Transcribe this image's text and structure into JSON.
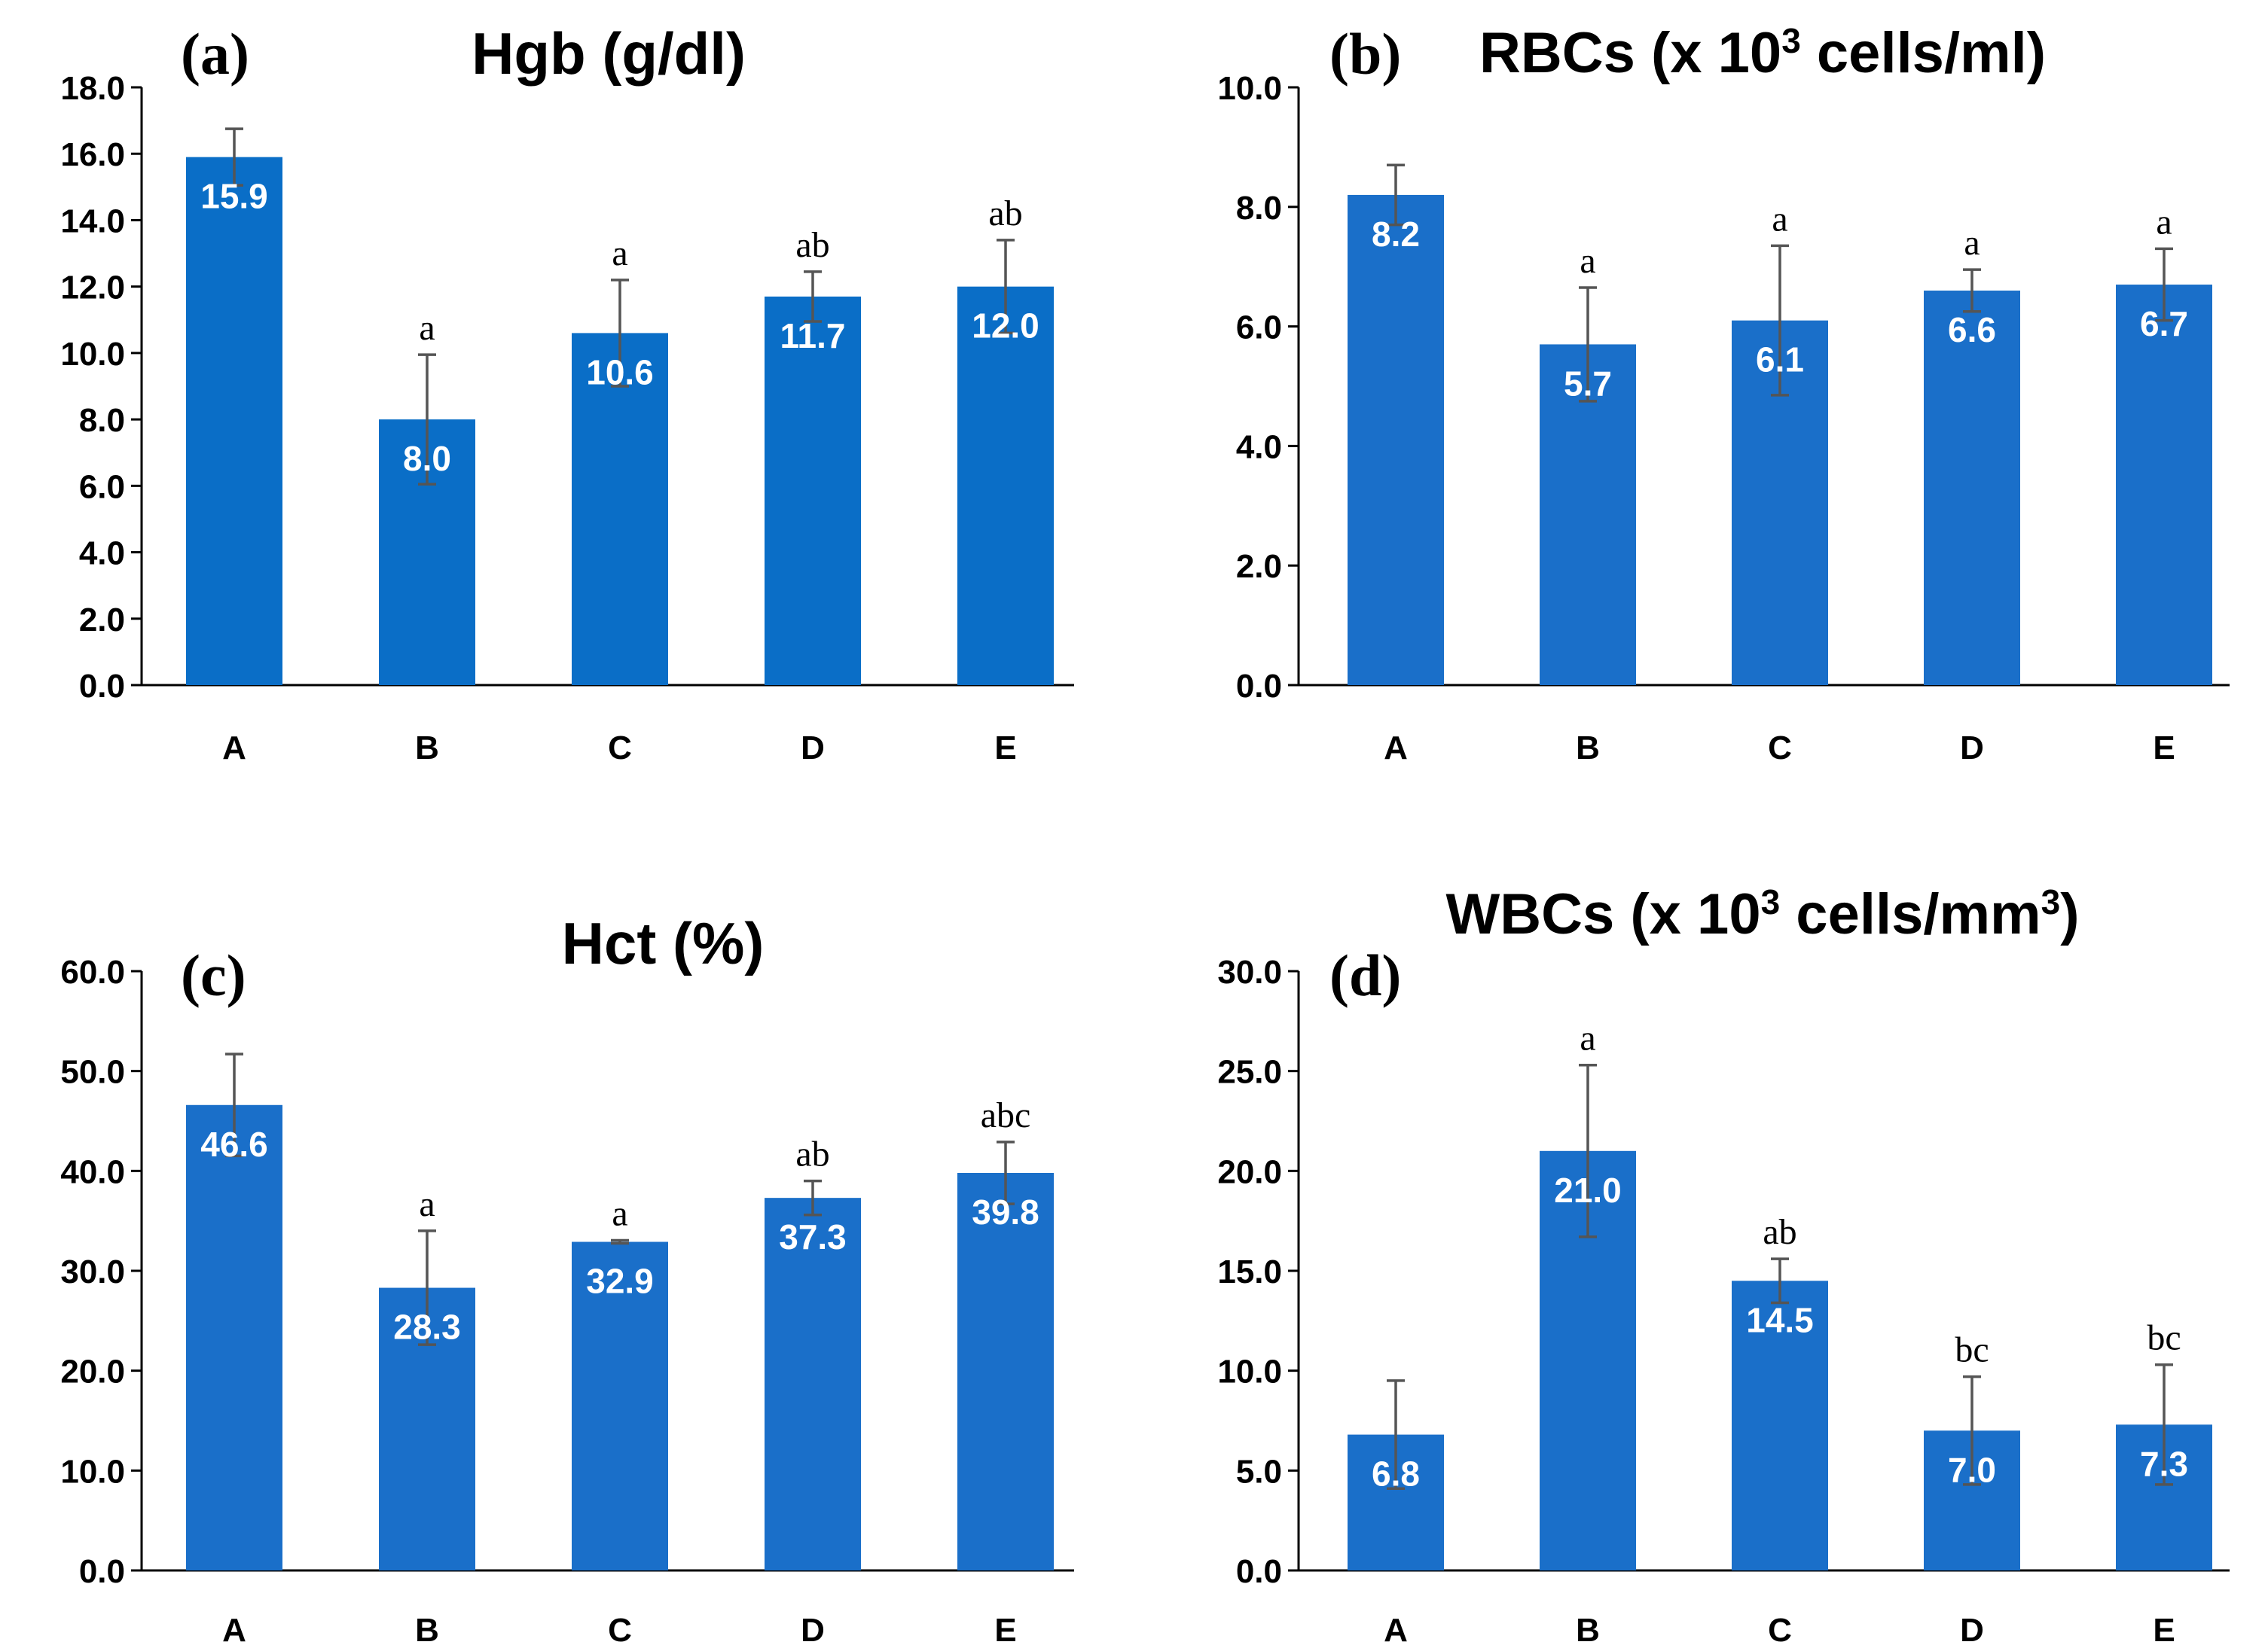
{
  "figure": {
    "colors": {
      "bar": "#1a6fc9",
      "bar_a": "#0a6ec7",
      "error": "#555555",
      "axis": "#000000"
    }
  },
  "chart_data": [
    {
      "id": "a",
      "type": "bar",
      "panel_label": "(a)",
      "title": "Hgb (g/dl)",
      "categories": [
        "A",
        "B",
        "C",
        "D",
        "E"
      ],
      "values": [
        15.9,
        8.0,
        10.6,
        11.7,
        12.0
      ],
      "value_labels": [
        "15.9",
        "8.0",
        "10.6",
        "11.7",
        "12.0"
      ],
      "error": [
        0.85,
        1.95,
        1.6,
        0.75,
        1.4
      ],
      "significance": [
        "",
        "a",
        "a",
        "ab",
        "ab"
      ],
      "ylim": [
        0,
        18
      ],
      "yticks": [
        0,
        2,
        4,
        6,
        8,
        10,
        12,
        14,
        16,
        18
      ],
      "ytick_labels": [
        "0.0",
        "2.0",
        "4.0",
        "6.0",
        "8.0",
        "10.0",
        "12.0",
        "14.0",
        "16.0",
        "18.0"
      ],
      "xlabel": "",
      "ylabel": ""
    },
    {
      "id": "b",
      "type": "bar",
      "panel_label": "(b)",
      "title": "RBCs (x 10",
      "title_sup": "3",
      "title_tail": " cells/ml)",
      "categories": [
        "A",
        "B",
        "C",
        "D",
        "E"
      ],
      "values": [
        8.2,
        5.7,
        6.1,
        6.6,
        6.7
      ],
      "value_labels": [
        "8.2",
        "5.7",
        "6.1",
        "6.6",
        "6.7"
      ],
      "error": [
        0.5,
        0.95,
        1.25,
        0.35,
        0.6
      ],
      "significance": [
        "",
        "a",
        "a",
        "a",
        "a"
      ],
      "ylim": [
        0,
        10
      ],
      "yticks": [
        0,
        2,
        4,
        6,
        8,
        10
      ],
      "ytick_labels": [
        "0.0",
        "2.0",
        "4.0",
        "6.0",
        "8.0",
        "10.0"
      ],
      "xlabel": "",
      "ylabel": ""
    },
    {
      "id": "c",
      "type": "bar",
      "panel_label": "(c)",
      "title": "Hct (%)",
      "categories": [
        "A",
        "B",
        "C",
        "D",
        "E"
      ],
      "values": [
        46.6,
        28.3,
        32.9,
        37.3,
        39.8
      ],
      "value_labels": [
        "46.6",
        "28.3",
        "32.9",
        "37.3",
        "39.8"
      ],
      "error": [
        5.1,
        5.7,
        0.15,
        1.7,
        3.1
      ],
      "significance": [
        "",
        "a",
        "a",
        "ab",
        "abc"
      ],
      "ylim": [
        0,
        60
      ],
      "yticks": [
        0,
        10,
        20,
        30,
        40,
        50,
        60
      ],
      "ytick_labels": [
        "0.0",
        "10.0",
        "20.0",
        "30.0",
        "40.0",
        "50.0",
        "60.0"
      ],
      "xlabel": "",
      "ylabel": ""
    },
    {
      "id": "d",
      "type": "bar",
      "panel_label": "(d)",
      "title": "WBCs (x 10",
      "title_sup": "3",
      "title_tail": " cells/mm",
      "title_sup2": "3",
      "title_tail2": ")",
      "categories": [
        "A",
        "B",
        "C",
        "D",
        "E"
      ],
      "values": [
        6.8,
        21.0,
        14.5,
        7.0,
        7.3
      ],
      "value_labels": [
        "6.8",
        "21.0",
        "14.5",
        "7.0",
        "7.3"
      ],
      "error": [
        2.7,
        4.3,
        1.1,
        2.7,
        3.0
      ],
      "significance": [
        "",
        "a",
        "ab",
        "bc",
        "bc"
      ],
      "ylim": [
        0,
        30
      ],
      "yticks": [
        0,
        5,
        10,
        15,
        20,
        25,
        30
      ],
      "ytick_labels": [
        "0.0",
        "5.0",
        "10.0",
        "15.0",
        "20.0",
        "25.0",
        "30.0"
      ],
      "xlabel": "",
      "ylabel": ""
    }
  ]
}
